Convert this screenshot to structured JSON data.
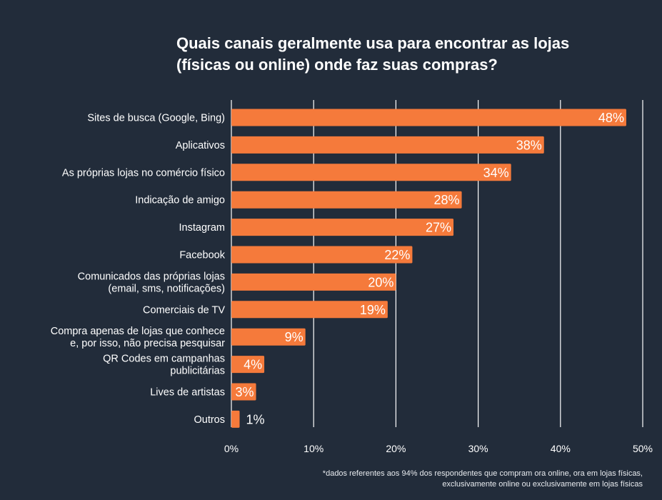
{
  "title": {
    "line1": "Quais canais geralmente usa para encontrar as lojas",
    "line2": "(físicas ou online) onde faz suas compras?"
  },
  "colors": {
    "background": "#222c3a",
    "bar": "#f57a3b",
    "grid": "#ffffff",
    "text": "#ffffff"
  },
  "footnote": {
    "line1": "*dados referentes aos 94% dos respondentes que compram ora online, ora em lojas físicas,",
    "line2": "exclusivamente online ou exclusivamente em lojas físicas"
  },
  "chart_data": {
    "type": "bar",
    "orientation": "horizontal",
    "categories": [
      [
        "Sites de busca (Google, Bing)"
      ],
      [
        "Aplicativos"
      ],
      [
        "As próprias lojas no comércio físico"
      ],
      [
        "Indicação de amigo"
      ],
      [
        "Instagram"
      ],
      [
        "Facebook"
      ],
      [
        "Comunicados das próprias lojas",
        "(email, sms, notificações)"
      ],
      [
        "Comerciais de TV"
      ],
      [
        "Compra apenas de lojas que conhece",
        "e, por isso, não precisa pesquisar"
      ],
      [
        "QR Codes em campanhas",
        "publicitárias"
      ],
      [
        "Lives de artistas"
      ],
      [
        "Outros"
      ]
    ],
    "values": [
      48,
      38,
      34,
      28,
      27,
      22,
      20,
      19,
      9,
      4,
      3,
      1
    ],
    "data_labels": [
      "48%",
      "38%",
      "34%",
      "28%",
      "27%",
      "22%",
      "20%",
      "19%",
      "9%",
      "4%",
      "3%",
      "1%"
    ],
    "xlim": [
      0,
      50
    ],
    "x_ticks": [
      0,
      10,
      20,
      30,
      40,
      50
    ],
    "x_tick_labels": [
      "0%",
      "10%",
      "20%",
      "30%",
      "40%",
      "50%"
    ],
    "grid": true
  }
}
